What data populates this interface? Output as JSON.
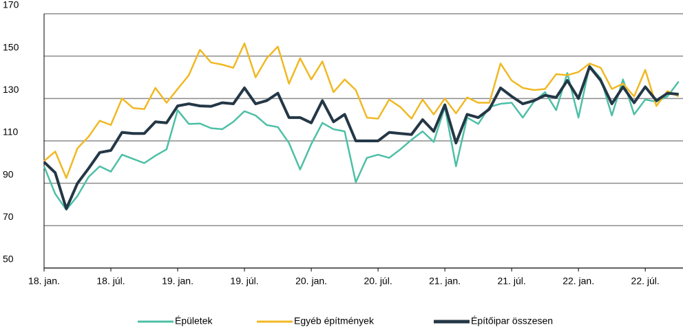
{
  "chart_data": {
    "type": "line",
    "categories": [
      "18. jan.",
      null,
      null,
      null,
      null,
      null,
      "18. júl.",
      null,
      null,
      null,
      null,
      null,
      "19. jan.",
      null,
      null,
      null,
      null,
      null,
      "19. júl.",
      null,
      null,
      null,
      null,
      null,
      "20. jan.",
      null,
      null,
      null,
      null,
      null,
      "20. júl.",
      null,
      null,
      null,
      null,
      null,
      "21. jan.",
      null,
      null,
      null,
      null,
      null,
      "21. júl.",
      null,
      null,
      null,
      null,
      null,
      "22. jan.",
      null,
      null,
      null,
      null,
      null,
      "22. júl.",
      null,
      null,
      null
    ],
    "series": [
      {
        "name": "Épületek",
        "color": "#4dbfa6",
        "values": [
          98,
          85,
          77.5,
          84,
          93,
          98,
          95.5,
          103.5,
          101.5,
          99.5,
          103,
          106,
          124.5,
          118,
          118.2,
          116,
          115.5,
          119,
          124,
          122,
          117.5,
          116.5,
          109,
          96.5,
          108.5,
          118.5,
          115.5,
          114.5,
          90.5,
          102,
          103.5,
          102,
          106,
          110.5,
          114.5,
          109.5,
          126,
          98,
          121,
          118,
          126,
          127.5,
          128,
          121,
          128.5,
          133,
          124.5,
          142,
          121,
          145.5,
          139.5,
          122,
          139,
          122.5,
          129.5,
          128.5,
          131,
          138
        ]
      },
      {
        "name": "Egyéb építmények",
        "color": "#f0b823",
        "values": [
          100.5,
          105,
          92.5,
          106.5,
          112,
          119.5,
          117.5,
          130,
          125.5,
          125,
          135,
          128,
          134.5,
          141,
          153,
          147,
          146,
          144.5,
          156,
          140,
          149,
          154.5,
          137,
          149,
          139,
          147.5,
          133,
          139,
          134,
          121,
          120.5,
          129.5,
          126,
          120.5,
          129.5,
          122.5,
          130,
          123,
          130.5,
          128,
          128,
          146.5,
          138.5,
          135,
          134,
          134.5,
          141.5,
          141,
          142.5,
          146.5,
          144.5,
          134.5,
          137,
          131,
          143.5,
          126.5,
          133.5,
          131
        ]
      },
      {
        "name": "Építőipar összesen",
        "color": "#243746",
        "values": [
          100,
          95,
          78,
          90,
          97,
          104.5,
          105.5,
          114,
          113.5,
          113.5,
          119,
          118.5,
          126.5,
          127.5,
          126.5,
          126.3,
          128,
          127.5,
          135,
          127.5,
          129,
          132.5,
          121,
          121,
          118.5,
          129,
          119,
          122.5,
          110,
          110,
          110,
          114,
          113.5,
          113,
          120,
          114.5,
          127,
          109,
          122.5,
          121,
          125,
          135,
          131,
          127.5,
          129,
          131.5,
          130.5,
          138.5,
          130,
          145,
          138.5,
          127.5,
          135.5,
          128,
          135.5,
          129,
          132.5,
          132
        ]
      }
    ],
    "ylim": [
      50,
      170
    ],
    "yticks": [
      50,
      70,
      90,
      110,
      130,
      150,
      170
    ],
    "grid": true
  }
}
